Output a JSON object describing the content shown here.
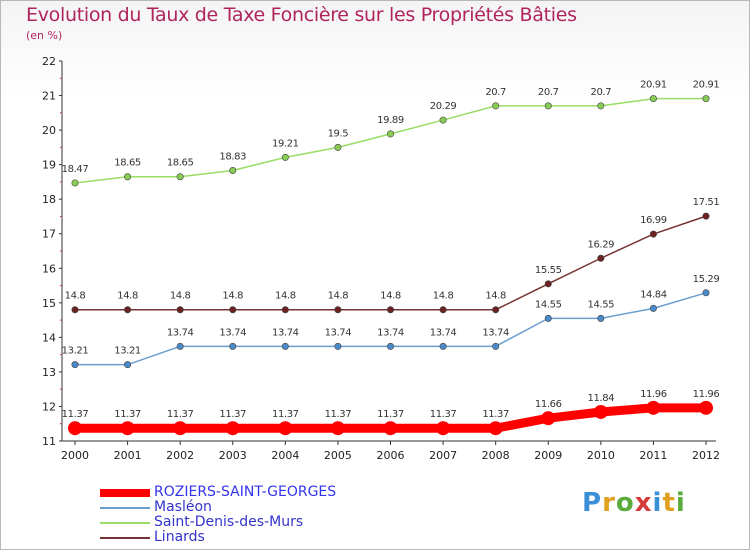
{
  "header": {
    "title": "Evolution du Taux de Taxe Foncière sur les Propriétés Bâties",
    "unit": "(en %)"
  },
  "logo": {
    "text": "Proxiti"
  },
  "chart_data": {
    "type": "line",
    "title": "Evolution du Taux de Taxe Foncière sur les Propriétés Bâties",
    "ylabel": "(en %)",
    "xlabel": "",
    "x": [
      "2000",
      "2001",
      "2002",
      "2003",
      "2004",
      "2005",
      "2006",
      "2007",
      "2008",
      "2009",
      "2010",
      "2011",
      "2012"
    ],
    "ylim": [
      11,
      22
    ],
    "yticks": [
      "11",
      "12",
      "13",
      "14",
      "15",
      "16",
      "17",
      "18",
      "19",
      "20",
      "21",
      "22"
    ],
    "grid": false,
    "legend_position": "bottom-left",
    "series": [
      {
        "name": "ROZIERS-SAINT-GEORGES",
        "color": "#ff0000",
        "marker_color": "#ff0000",
        "values": [
          11.37,
          11.37,
          11.37,
          11.37,
          11.37,
          11.37,
          11.37,
          11.37,
          11.37,
          11.66,
          11.84,
          11.96,
          11.96
        ],
        "labels": [
          "11.37",
          "11.37",
          "11.37",
          "11.37",
          "11.37",
          "11.37",
          "11.37",
          "11.37",
          "11.37",
          "11.66",
          "11.84",
          "11.96",
          "11.96"
        ],
        "bold": true
      },
      {
        "name": "Masléon",
        "color": "#6a9ed0",
        "marker_color": "#4a8ac8",
        "values": [
          13.21,
          13.21,
          13.74,
          13.74,
          13.74,
          13.74,
          13.74,
          13.74,
          13.74,
          14.55,
          14.55,
          14.84,
          15.29
        ],
        "labels": [
          "13.21",
          "13.21",
          "13.74",
          "13.74",
          "13.74",
          "13.74",
          "13.74",
          "13.74",
          "13.74",
          "14.55",
          "14.55",
          "14.84",
          "15.29"
        ]
      },
      {
        "name": "Saint-Denis-des-Murs",
        "color": "#99dd66",
        "marker_color": "#88cc55",
        "values": [
          18.47,
          18.65,
          18.65,
          18.83,
          19.21,
          19.5,
          19.89,
          20.29,
          20.7,
          20.7,
          20.7,
          20.91,
          20.91
        ],
        "labels": [
          "18.47",
          "18.65",
          "18.65",
          "18.83",
          "19.21",
          "19.5",
          "19.89",
          "20.29",
          "20.7",
          "20.7",
          "20.7",
          "20.91",
          "20.91"
        ]
      },
      {
        "name": "Linards",
        "color": "#773333",
        "marker_color": "#6a2222",
        "values": [
          14.8,
          14.8,
          14.8,
          14.8,
          14.8,
          14.8,
          14.8,
          14.8,
          14.8,
          15.55,
          16.29,
          16.99,
          17.51
        ],
        "labels": [
          "14.8",
          "14.8",
          "14.8",
          "14.8",
          "14.8",
          "14.8",
          "14.8",
          "14.8",
          "14.8",
          "15.55",
          "16.29",
          "16.99",
          "17.51"
        ]
      }
    ]
  }
}
